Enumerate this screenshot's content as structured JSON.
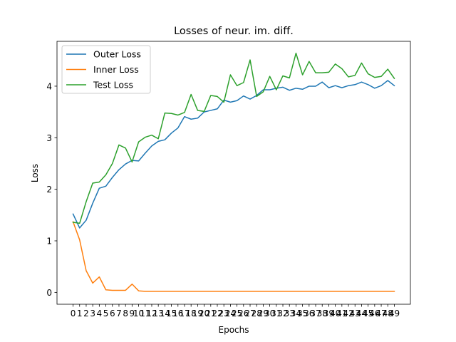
{
  "chart_data": {
    "type": "line",
    "title": "Losses of neur. im. diff.",
    "xlabel": "Epochs",
    "ylabel": "Loss",
    "x": [
      0,
      1,
      2,
      3,
      4,
      5,
      6,
      7,
      8,
      9,
      10,
      11,
      12,
      13,
      14,
      15,
      16,
      17,
      18,
      19,
      20,
      21,
      22,
      23,
      24,
      25,
      26,
      27,
      28,
      29,
      30,
      31,
      32,
      33,
      34,
      35,
      36,
      37,
      38,
      39,
      40,
      41,
      42,
      43,
      44,
      45,
      46,
      47,
      48,
      49
    ],
    "xlim": [
      -2.45,
      51.45
    ],
    "ylim": [
      -0.23,
      4.87
    ],
    "yticks": [
      0,
      1,
      2,
      3,
      4
    ],
    "legend_position": "upper left",
    "grid": false,
    "series": [
      {
        "name": "Outer Loss",
        "color": "#1f77b4",
        "values": [
          1.52,
          1.25,
          1.4,
          1.73,
          2.02,
          2.06,
          2.23,
          2.38,
          2.49,
          2.56,
          2.55,
          2.7,
          2.84,
          2.93,
          2.96,
          3.09,
          3.19,
          3.41,
          3.36,
          3.38,
          3.5,
          3.53,
          3.56,
          3.73,
          3.69,
          3.72,
          3.81,
          3.75,
          3.82,
          3.93,
          3.93,
          3.96,
          3.98,
          3.92,
          3.96,
          3.94,
          4.0,
          4.0,
          4.08,
          3.97,
          4.01,
          3.97,
          4.01,
          4.03,
          4.08,
          4.03,
          3.96,
          4.01,
          4.11,
          4.01
        ]
      },
      {
        "name": "Inner Loss",
        "color": "#ff7f0e",
        "values": [
          1.37,
          1.02,
          0.42,
          0.18,
          0.3,
          0.05,
          0.04,
          0.04,
          0.04,
          0.16,
          0.03,
          0.02,
          0.02,
          0.02,
          0.02,
          0.02,
          0.02,
          0.02,
          0.02,
          0.02,
          0.02,
          0.02,
          0.02,
          0.02,
          0.02,
          0.02,
          0.02,
          0.02,
          0.02,
          0.02,
          0.02,
          0.02,
          0.02,
          0.02,
          0.02,
          0.02,
          0.02,
          0.02,
          0.02,
          0.02,
          0.02,
          0.02,
          0.02,
          0.02,
          0.02,
          0.02,
          0.02,
          0.02,
          0.02,
          0.02
        ]
      },
      {
        "name": "Test Loss",
        "color": "#2ca02c",
        "values": [
          1.36,
          1.34,
          1.76,
          2.12,
          2.14,
          2.28,
          2.5,
          2.86,
          2.8,
          2.53,
          2.92,
          3.01,
          3.05,
          2.98,
          3.48,
          3.47,
          3.44,
          3.49,
          3.84,
          3.53,
          3.51,
          3.82,
          3.8,
          3.69,
          4.22,
          4.01,
          4.07,
          4.51,
          3.8,
          3.89,
          4.19,
          3.93,
          4.2,
          4.16,
          4.64,
          4.22,
          4.48,
          4.26,
          4.26,
          4.27,
          4.43,
          4.34,
          4.18,
          4.21,
          4.45,
          4.24,
          4.17,
          4.19,
          4.33,
          4.15
        ]
      }
    ]
  }
}
